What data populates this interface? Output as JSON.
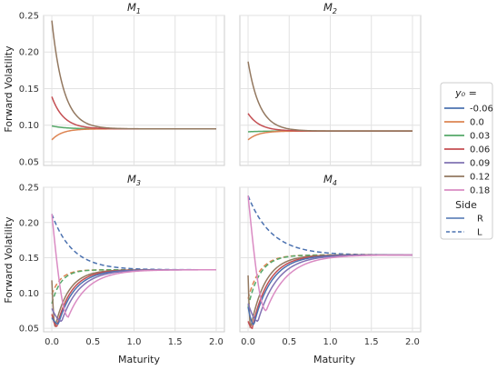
{
  "chart_data": {
    "type": "line",
    "colors": {
      "-0.06": "#4c72b0",
      "0.0": "#dd8452",
      "0.03": "#55a868",
      "0.06": "#c44e52",
      "0.09": "#8172b3",
      "0.12": "#937860",
      "0.18": "#da8bc3"
    },
    "xlabel": "Maturity",
    "ylabel": "Forward Volatility",
    "x_ticks": [
      "0.0",
      "0.5",
      "1.0",
      "1.5",
      "2.0"
    ],
    "xlim": [
      -0.1,
      2.1
    ],
    "grid": true,
    "legend": {
      "placement": "right",
      "y0_title": "y₀ =",
      "y0_entries": [
        "-0.06",
        "0.0",
        "0.03",
        "0.06",
        "0.09",
        "0.12",
        "0.18"
      ],
      "side_title": "Side",
      "side_entries": [
        {
          "label": "R",
          "style": "solid"
        },
        {
          "label": "L",
          "style": "dashed"
        }
      ]
    },
    "panels": [
      {
        "title_base": "M",
        "title_sub": "1",
        "ylim": [
          0.045,
          0.25
        ],
        "y_ticks": [
          "0.05",
          "0.10",
          "0.15",
          "0.20",
          "0.25"
        ],
        "show_xticks": false,
        "show_ylabel": true,
        "asymptote": 0.095,
        "series": [
          {
            "name": "0.03",
            "side": "R",
            "kind": "exp",
            "y0": 0.099,
            "k": 6
          },
          {
            "name": "0.0",
            "side": "R",
            "kind": "exp",
            "y0": 0.08,
            "k": 8
          },
          {
            "name": "0.06",
            "side": "R",
            "kind": "exp",
            "y0": 0.139,
            "k": 7
          },
          {
            "name": "0.12",
            "side": "R",
            "kind": "exp",
            "y0": 0.243,
            "k": 7
          }
        ]
      },
      {
        "title_base": "M",
        "title_sub": "2",
        "ylim": [
          0.045,
          0.25
        ],
        "y_ticks": [
          "0.05",
          "0.10",
          "0.15",
          "0.20",
          "0.25"
        ],
        "show_xticks": false,
        "show_ylabel": false,
        "asymptote": 0.092,
        "series": [
          {
            "name": "0.03",
            "side": "R",
            "kind": "exp",
            "y0": 0.091,
            "k": 6
          },
          {
            "name": "0.0",
            "side": "R",
            "kind": "exp",
            "y0": 0.08,
            "k": 8
          },
          {
            "name": "0.06",
            "side": "R",
            "kind": "exp",
            "y0": 0.116,
            "k": 7
          },
          {
            "name": "0.12",
            "side": "R",
            "kind": "exp",
            "y0": 0.187,
            "k": 7
          }
        ]
      },
      {
        "title_base": "M",
        "title_sub": "3",
        "ylim": [
          0.045,
          0.25
        ],
        "y_ticks": [
          "0.05",
          "0.10",
          "0.15",
          "0.20",
          "0.25"
        ],
        "show_xticks": true,
        "show_ylabel": true,
        "asymptote": 0.133,
        "series": [
          {
            "name": "-0.06",
            "side": "L",
            "kind": "exp",
            "y0": 0.212,
            "k": 4
          },
          {
            "name": "0.0",
            "side": "L",
            "kind": "exp",
            "y0": 0.098,
            "k": 9
          },
          {
            "name": "0.03",
            "side": "L",
            "kind": "exp",
            "y0": 0.085,
            "k": 9
          },
          {
            "name": "0.12",
            "side": "R",
            "kind": "dip",
            "y0": 0.118,
            "tmin": 0.04,
            "vmin": 0.052,
            "k": 6
          },
          {
            "name": "0.06",
            "side": "R",
            "kind": "dip",
            "y0": 0.07,
            "tmin": 0.06,
            "vmin": 0.052,
            "k": 5.5
          },
          {
            "name": "-0.06",
            "side": "R",
            "kind": "dip",
            "y0": 0.065,
            "tmin": 0.08,
            "vmin": 0.056,
            "k": 5
          },
          {
            "name": "0.09",
            "side": "R",
            "kind": "dip",
            "y0": 0.078,
            "tmin": 0.12,
            "vmin": 0.06,
            "k": 4.6
          },
          {
            "name": "0.18",
            "side": "R",
            "kind": "dip",
            "y0": 0.212,
            "tmin": 0.2,
            "vmin": 0.066,
            "k": 4.2
          }
        ]
      },
      {
        "title_base": "M",
        "title_sub": "4",
        "ylim": [
          0.045,
          0.25
        ],
        "y_ticks": [
          "0.05",
          "0.10",
          "0.15",
          "0.20",
          "0.25"
        ],
        "show_xticks": true,
        "show_ylabel": false,
        "asymptote": 0.154,
        "series": [
          {
            "name": "-0.06",
            "side": "L",
            "kind": "exp",
            "y0": 0.238,
            "k": 3.5
          },
          {
            "name": "0.0",
            "side": "L",
            "kind": "exp",
            "y0": 0.092,
            "k": 7
          },
          {
            "name": "0.03",
            "side": "L",
            "kind": "exp",
            "y0": 0.08,
            "k": 7
          },
          {
            "name": "0.12",
            "side": "R",
            "kind": "dip",
            "y0": 0.125,
            "tmin": 0.03,
            "vmin": 0.05,
            "k": 5.5
          },
          {
            "name": "0.06",
            "side": "R",
            "kind": "dip",
            "y0": 0.06,
            "tmin": 0.05,
            "vmin": 0.05,
            "k": 5
          },
          {
            "name": "-0.06",
            "side": "R",
            "kind": "dip",
            "y0": 0.08,
            "tmin": 0.07,
            "vmin": 0.055,
            "k": 4.6
          },
          {
            "name": "0.09",
            "side": "R",
            "kind": "dip",
            "y0": 0.085,
            "tmin": 0.12,
            "vmin": 0.06,
            "k": 4.2
          },
          {
            "name": "0.18",
            "side": "R",
            "kind": "dip",
            "y0": 0.238,
            "tmin": 0.22,
            "vmin": 0.075,
            "k": 3.8
          }
        ]
      }
    ]
  }
}
